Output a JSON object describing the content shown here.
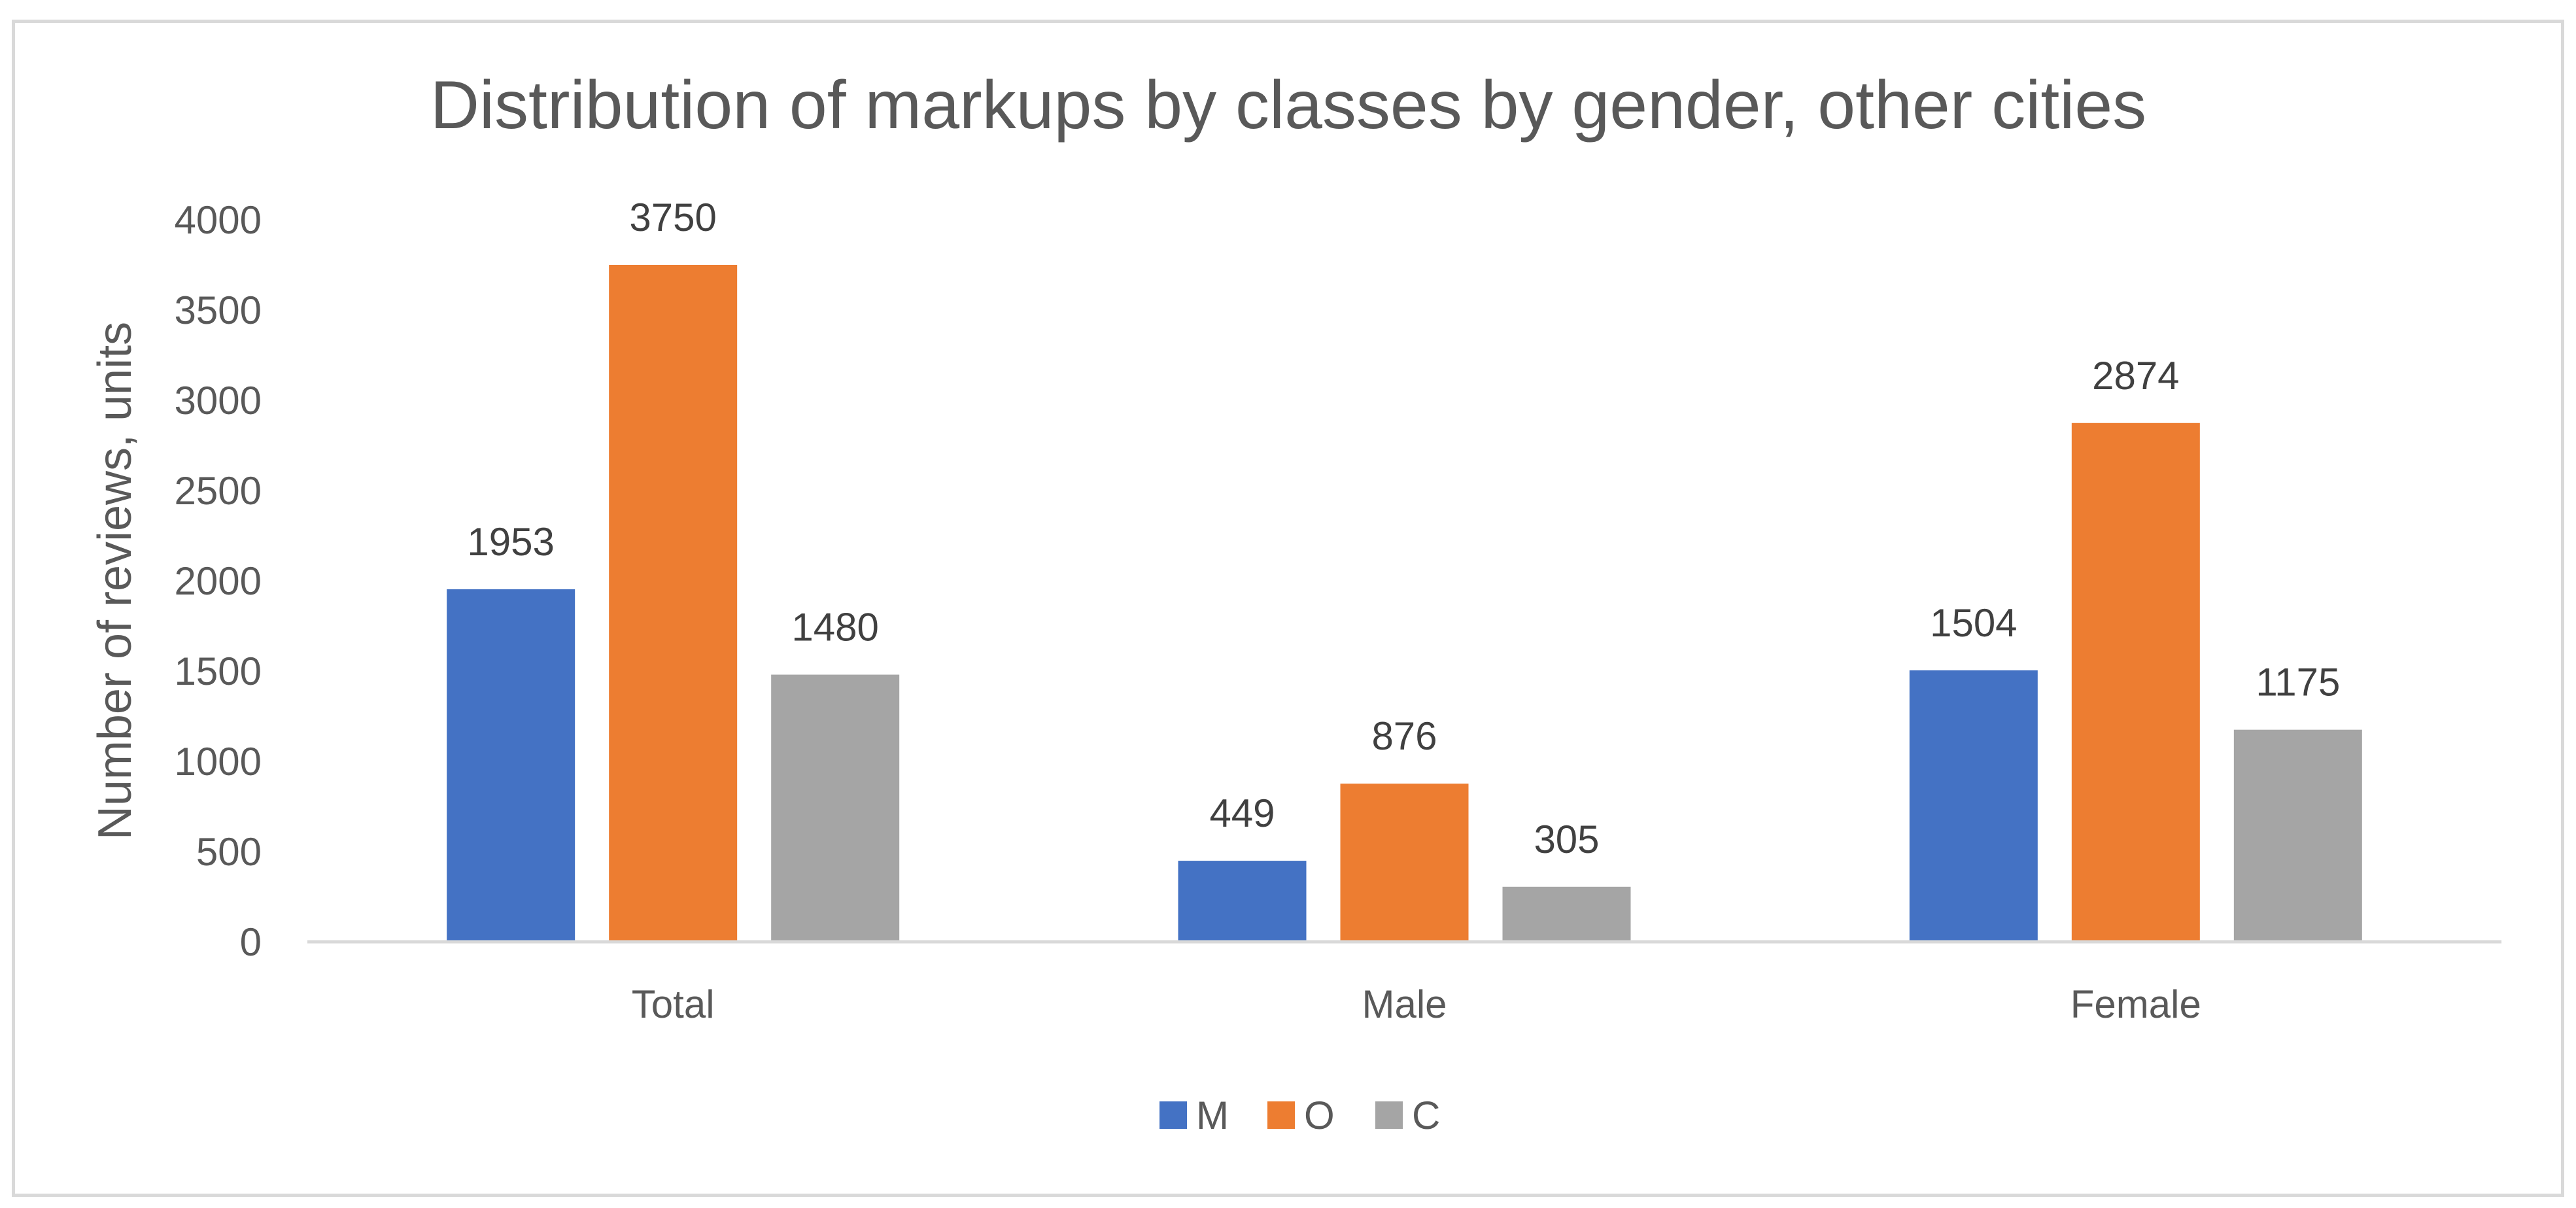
{
  "chart_data": {
    "type": "bar",
    "title": "Distribution of markups by classes by gender, other cities",
    "xlabel": "",
    "ylabel": "Number of reviews, units",
    "ylim": [
      0,
      4000
    ],
    "yticks": [
      "0",
      "500",
      "1000",
      "1500",
      "2000",
      "2500",
      "3000",
      "3500",
      "4000"
    ],
    "categories": [
      "Total",
      "Male",
      "Female"
    ],
    "series": [
      {
        "name": "M",
        "color": "#4472C4",
        "values": [
          1953,
          449,
          1504
        ]
      },
      {
        "name": "O",
        "color": "#ED7D31",
        "values": [
          3750,
          876,
          2874
        ]
      },
      {
        "name": "C",
        "color": "#A5A5A5",
        "values": [
          1480,
          305,
          1175
        ]
      }
    ],
    "grid": false,
    "data_labels": true,
    "legend_position": "bottom"
  }
}
